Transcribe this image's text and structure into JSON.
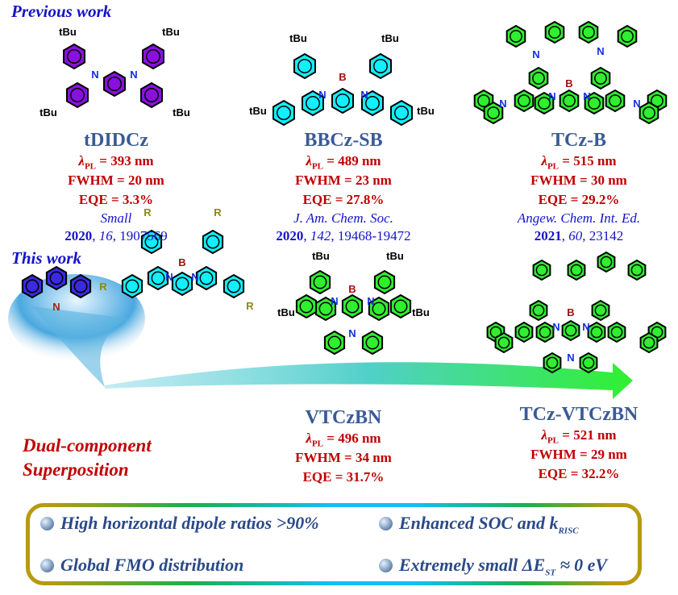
{
  "colors": {
    "purple": "#8a10e0",
    "cyan": "#10f0ff",
    "green": "#30ee30",
    "blue": "#3a2ae0",
    "atom_n": "#1030e0",
    "atom_b": "#a01010",
    "atom_r": "#8a8a10",
    "arrow": "#40e860"
  },
  "atom_labels": {
    "tbu": "tBu",
    "n": "N",
    "b": "B",
    "r": "R"
  },
  "sections": {
    "previous": "Previous work",
    "this": "This work"
  },
  "previous": [
    {
      "name": "tDIDCz",
      "lambda": "λ",
      "lambda_sub": "PL",
      "lambda_val": " = 393 nm",
      "fwhm": "FWHM = 20 nm",
      "eqe": "EQE = 3.3%",
      "journal": "Small",
      "year": "2020",
      "volume": "16",
      "pages": "1907569"
    },
    {
      "name": "BBCz-SB",
      "lambda": "λ",
      "lambda_sub": "PL",
      "lambda_val": " = 489 nm",
      "fwhm": "FWHM = 23 nm",
      "eqe": "EQE = 27.8%",
      "journal": "J. Am. Chem. Soc.",
      "year": "2020",
      "volume": "142",
      "pages": "19468-19472"
    },
    {
      "name": "TCz-B",
      "lambda": "λ",
      "lambda_sub": "PL",
      "lambda_val": " = 515 nm",
      "fwhm": "FWHM = 30 nm",
      "eqe": "EQE = 29.2%",
      "journal": "Angew. Chem. Int. Ed.",
      "year": "2021",
      "volume": "60",
      "pages": "23142"
    }
  ],
  "current": [
    {
      "name": "VTCzBN",
      "lambda": "λ",
      "lambda_sub": "PL",
      "lambda_val": " = 496 nm",
      "fwhm": "FWHM = 34 nm",
      "eqe": "EQE = 31.7%"
    },
    {
      "name": "TCz-VTCzBN",
      "lambda": "λ",
      "lambda_sub": "PL",
      "lambda_val": " = 521 nm",
      "fwhm": "FWHM = 29 nm",
      "eqe": "EQE = 32.2%"
    }
  ],
  "concept": {
    "line1": "Dual-component",
    "line2": "Superposition"
  },
  "features": [
    {
      "text": "High horizontal dipole ratios >90%"
    },
    {
      "text": "Enhanced SOC and k",
      "sub": "RISC"
    },
    {
      "text": "Global FMO distribution"
    },
    {
      "text": "Extremely small ΔE",
      "sub": "ST",
      "tail": " ≈ 0 eV"
    }
  ]
}
